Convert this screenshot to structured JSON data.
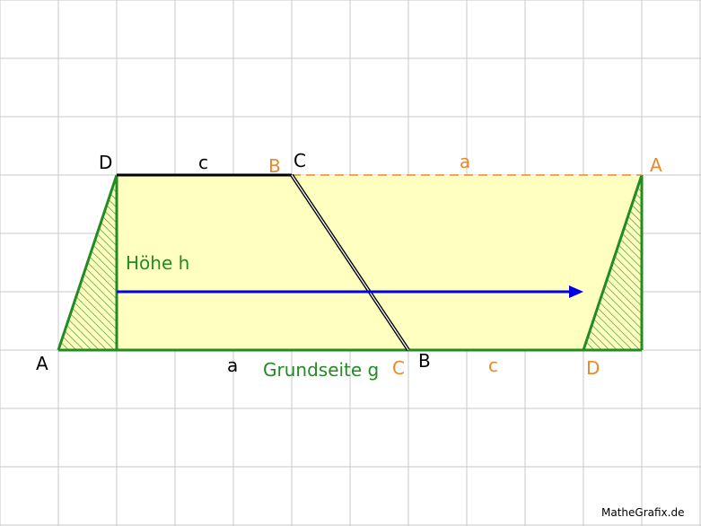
{
  "colors": {
    "grid": "#c8c8c8",
    "fill": "#ffffbf",
    "green": "#228b22",
    "orange": "#e8892c",
    "blue": "#0000e6",
    "black": "#000000"
  },
  "labels": {
    "A_left": "A",
    "D_top": "D",
    "c_top": "c",
    "B_orange_top": "B",
    "C_top": "C",
    "a_top": "a",
    "A_right": "A",
    "height": "Höhe h",
    "a_bottom": "a",
    "base": "Grundseite g",
    "C_orange_bottom": "C",
    "B_bottom": "B",
    "c_bottom": "c",
    "D_orange_bottom": "D"
  },
  "credit": "MatheGrafix.de"
}
